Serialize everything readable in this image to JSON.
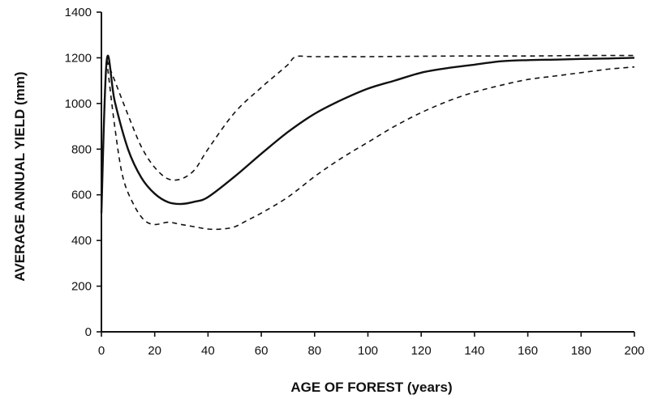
{
  "chart_data": {
    "type": "line",
    "title": "",
    "xlabel": "AGE OF FOREST (years)",
    "ylabel": "AVERAGE ANNUAL YIELD (mm)",
    "xlim": [
      0,
      200
    ],
    "ylim": [
      0,
      1400
    ],
    "xticks": [
      0,
      20,
      40,
      60,
      80,
      100,
      120,
      140,
      160,
      180,
      200
    ],
    "yticks": [
      0,
      200,
      400,
      600,
      800,
      1000,
      1200,
      1400
    ],
    "grid": false,
    "series": [
      {
        "style": "solid",
        "x": [
          0,
          2,
          5,
          10,
          15,
          20,
          25,
          30,
          35,
          40,
          50,
          60,
          70,
          80,
          90,
          100,
          110,
          120,
          130,
          140,
          150,
          160,
          170,
          180,
          190,
          200
        ],
        "y": [
          520,
          1190,
          1010,
          800,
          675,
          605,
          568,
          560,
          570,
          590,
          680,
          780,
          875,
          955,
          1015,
          1065,
          1100,
          1135,
          1155,
          1170,
          1185,
          1190,
          1192,
          1195,
          1197,
          1200
        ]
      },
      {
        "style": "dashed",
        "x": [
          2,
          5,
          10,
          15,
          20,
          25,
          30,
          35,
          40,
          50,
          60,
          65,
          70,
          73,
          80,
          100,
          120,
          140,
          160,
          180,
          200
        ],
        "y": [
          1190,
          1100,
          950,
          810,
          720,
          670,
          670,
          710,
          800,
          960,
          1070,
          1120,
          1170,
          1205,
          1205,
          1205,
          1207,
          1208,
          1208,
          1210,
          1210
        ]
      },
      {
        "style": "dashed",
        "x": [
          2,
          5,
          8,
          12,
          16,
          20,
          25,
          30,
          35,
          40,
          45,
          50,
          55,
          60,
          70,
          80,
          90,
          100,
          110,
          120,
          130,
          140,
          150,
          160,
          170,
          180,
          190,
          200
        ],
        "y": [
          1190,
          900,
          680,
          560,
          490,
          470,
          480,
          470,
          460,
          450,
          450,
          460,
          490,
          520,
          590,
          680,
          760,
          830,
          900,
          960,
          1010,
          1050,
          1080,
          1105,
          1120,
          1135,
          1150,
          1160
        ]
      }
    ]
  }
}
